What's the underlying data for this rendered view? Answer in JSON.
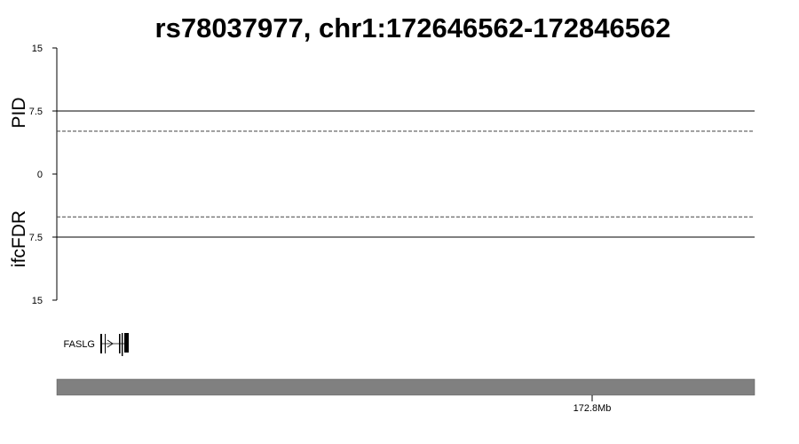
{
  "chart_data": {
    "type": "scatter",
    "title": "rs78037977, chr1:172646562-172846562",
    "region": {
      "chrom": "chr1",
      "start": 172646562,
      "end": 172846562
    },
    "panels": [
      {
        "ylabel": "PID",
        "direction": "up",
        "ylim": [
          0,
          15
        ],
        "yticks": [
          15,
          7.5,
          0
        ],
        "ytick_labels": [
          "15",
          "7.5",
          "0"
        ],
        "thresholds": [
          {
            "value": 7.5,
            "style": "solid"
          },
          {
            "value": 5.1,
            "style": "dashed"
          }
        ],
        "points": []
      },
      {
        "ylabel": "ifcFDR",
        "direction": "down",
        "ylim": [
          0,
          15
        ],
        "yticks": [
          7.5,
          15
        ],
        "ytick_labels": [
          "7.5",
          "15"
        ],
        "thresholds": [
          {
            "value": 7.5,
            "style": "solid"
          },
          {
            "value": 5.1,
            "style": "dashed"
          }
        ],
        "points": []
      }
    ],
    "genes": [
      {
        "name": "FASLG",
        "strand": "+",
        "start": 172628000,
        "end": 172636000,
        "exons": [
          [
            172628000,
            172628400
          ],
          [
            172631200,
            172631500
          ],
          [
            172633200,
            172633600
          ],
          [
            172634400,
            172636000
          ]
        ]
      }
    ],
    "xaxis": {
      "ticks": [
        172800000
      ],
      "tick_labels": [
        "172.8Mb"
      ]
    },
    "colors": {
      "axis": "#000000",
      "ideogram": "#808080",
      "threshold": "#000000"
    }
  }
}
